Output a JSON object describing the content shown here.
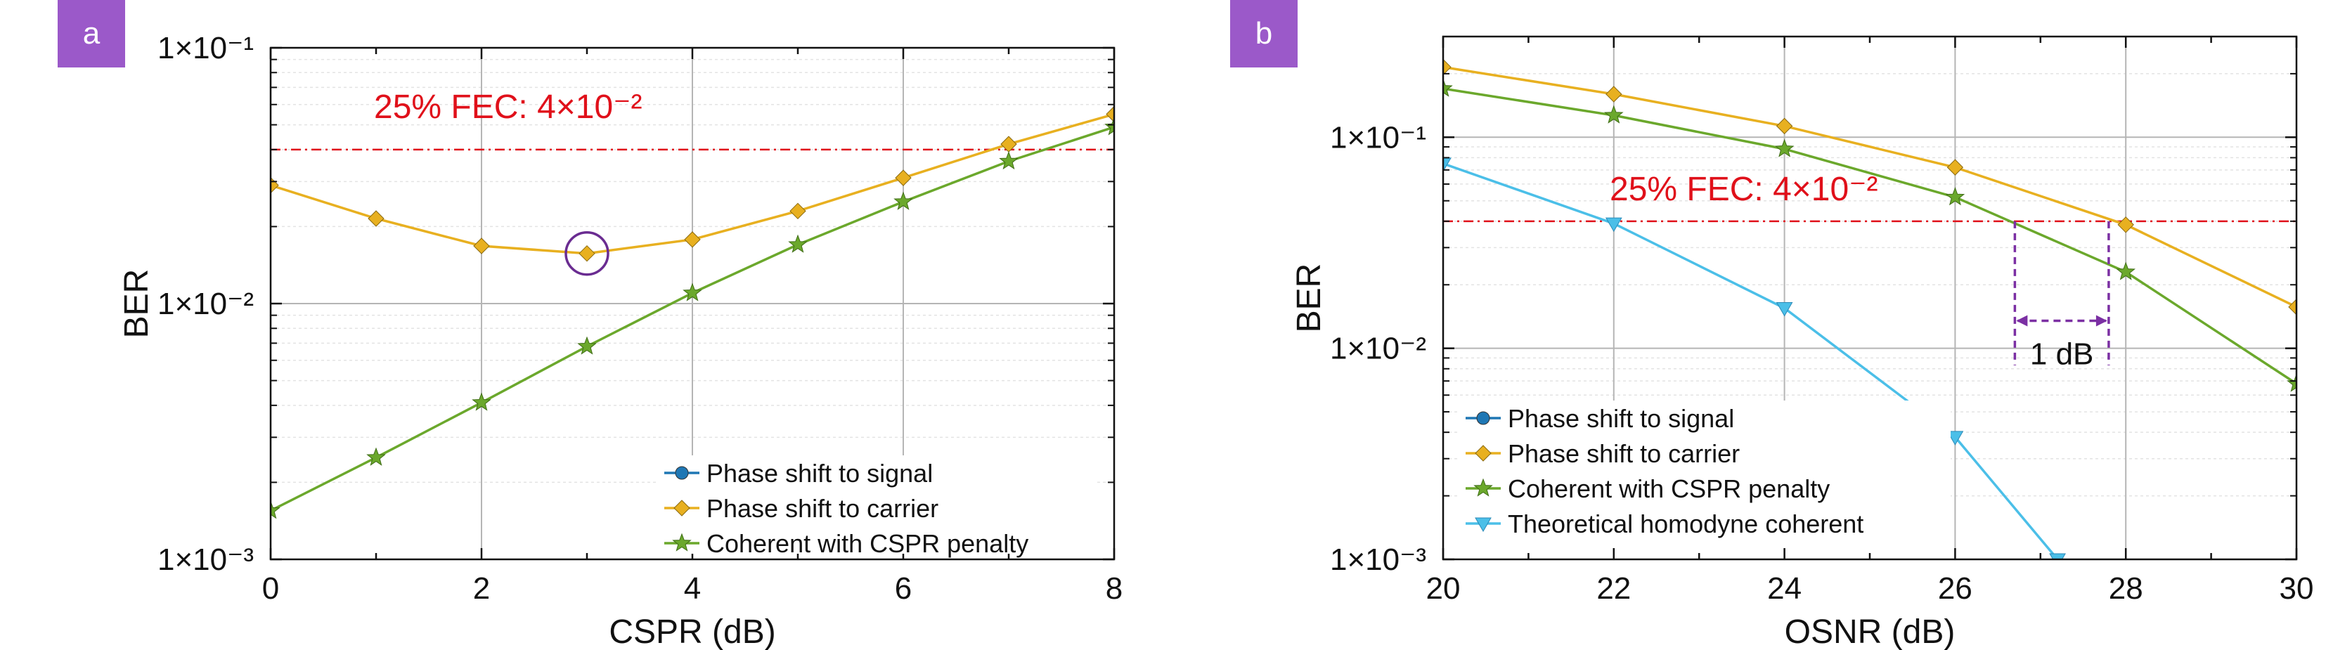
{
  "colors": {
    "signal": "#1f77b4",
    "carrier": "#E8B020",
    "cspr": "#6BA82C",
    "theory": "#4BBFE8",
    "fec": "#E0101A",
    "badge": "#9B59C9",
    "marker_circle": "#6A2C91",
    "annotation": "#7B2FA3"
  },
  "chart_data": [
    {
      "type": "line",
      "panel": "a",
      "xlabel": "CSPR (dB)",
      "ylabel": "BER",
      "xlim": [
        0,
        8
      ],
      "ylim": [
        0.001,
        0.1
      ],
      "yscale": "log",
      "grid": true,
      "x_ticks": [
        0,
        2,
        4,
        6,
        8
      ],
      "y_ticks": [
        0.001,
        0.01,
        0.1
      ],
      "x_tick_labels": [
        "0",
        "2",
        "4",
        "6",
        "8"
      ],
      "y_tick_labels": [
        "1×10⁻³",
        "1×10⁻²",
        "1×10⁻¹"
      ],
      "threshold": {
        "value": 0.04,
        "label": "25% FEC: 4×10⁻²"
      },
      "legend_position": "bottom-right",
      "series": [
        {
          "name": "Phase shift to signal",
          "key": "signal",
          "marker": "circle",
          "x": [],
          "y": []
        },
        {
          "name": "Phase shift to carrier",
          "key": "carrier",
          "marker": "diamond",
          "x": [
            0,
            1,
            2,
            3,
            4,
            5,
            6,
            7,
            8
          ],
          "y": [
            0.029,
            0.0215,
            0.0168,
            0.0157,
            0.0178,
            0.023,
            0.031,
            0.042,
            0.055
          ]
        },
        {
          "name": "Coherent with CSPR penalty",
          "key": "cspr",
          "marker": "star",
          "x": [
            0,
            1,
            2,
            3,
            4,
            5,
            6,
            7,
            8
          ],
          "y": [
            0.00155,
            0.0025,
            0.0041,
            0.0068,
            0.011,
            0.017,
            0.025,
            0.036,
            0.049
          ]
        }
      ],
      "highlight": {
        "x": 3,
        "y": 0.0157
      }
    },
    {
      "type": "line",
      "panel": "b",
      "xlabel": "OSNR (dB)",
      "ylabel": "BER",
      "xlim": [
        20,
        30
      ],
      "ylim": [
        0.001,
        0.3
      ],
      "yscale": "log",
      "grid": true,
      "x_ticks": [
        20,
        22,
        24,
        26,
        28,
        30
      ],
      "y_ticks": [
        0.001,
        0.01,
        0.1
      ],
      "x_tick_labels": [
        "20",
        "22",
        "24",
        "26",
        "28",
        "30"
      ],
      "y_tick_labels": [
        "1×10⁻³",
        "1×10⁻²",
        "1×10⁻¹"
      ],
      "threshold": {
        "value": 0.04,
        "label": "25% FEC: 4×10⁻²"
      },
      "legend_position": "bottom-left",
      "series": [
        {
          "name": "Phase shift to signal",
          "key": "signal",
          "marker": "circle",
          "x": [],
          "y": []
        },
        {
          "name": "Phase shift to carrier",
          "key": "carrier",
          "marker": "diamond",
          "x": [
            20,
            22,
            24,
            26,
            28,
            30
          ],
          "y": [
            0.215,
            0.16,
            0.113,
            0.072,
            0.0385,
            0.0157
          ]
        },
        {
          "name": "Coherent with CSPR penalty",
          "key": "cspr",
          "marker": "star",
          "x": [
            20,
            22,
            24,
            26,
            28,
            30
          ],
          "y": [
            0.17,
            0.127,
            0.088,
            0.052,
            0.023,
            0.0068
          ]
        },
        {
          "name": "Theoretical homodyne coherent",
          "key": "theory",
          "marker": "triangle-down",
          "x": [
            20,
            22,
            24,
            26,
            27.2
          ],
          "y": [
            0.075,
            0.039,
            0.0155,
            0.0038,
            0.001
          ]
        }
      ],
      "annotation": {
        "label": "1 dB",
        "x1": 26.7,
        "x2": 27.8
      }
    }
  ],
  "panels": [
    {
      "label": "a"
    },
    {
      "label": "b"
    }
  ]
}
